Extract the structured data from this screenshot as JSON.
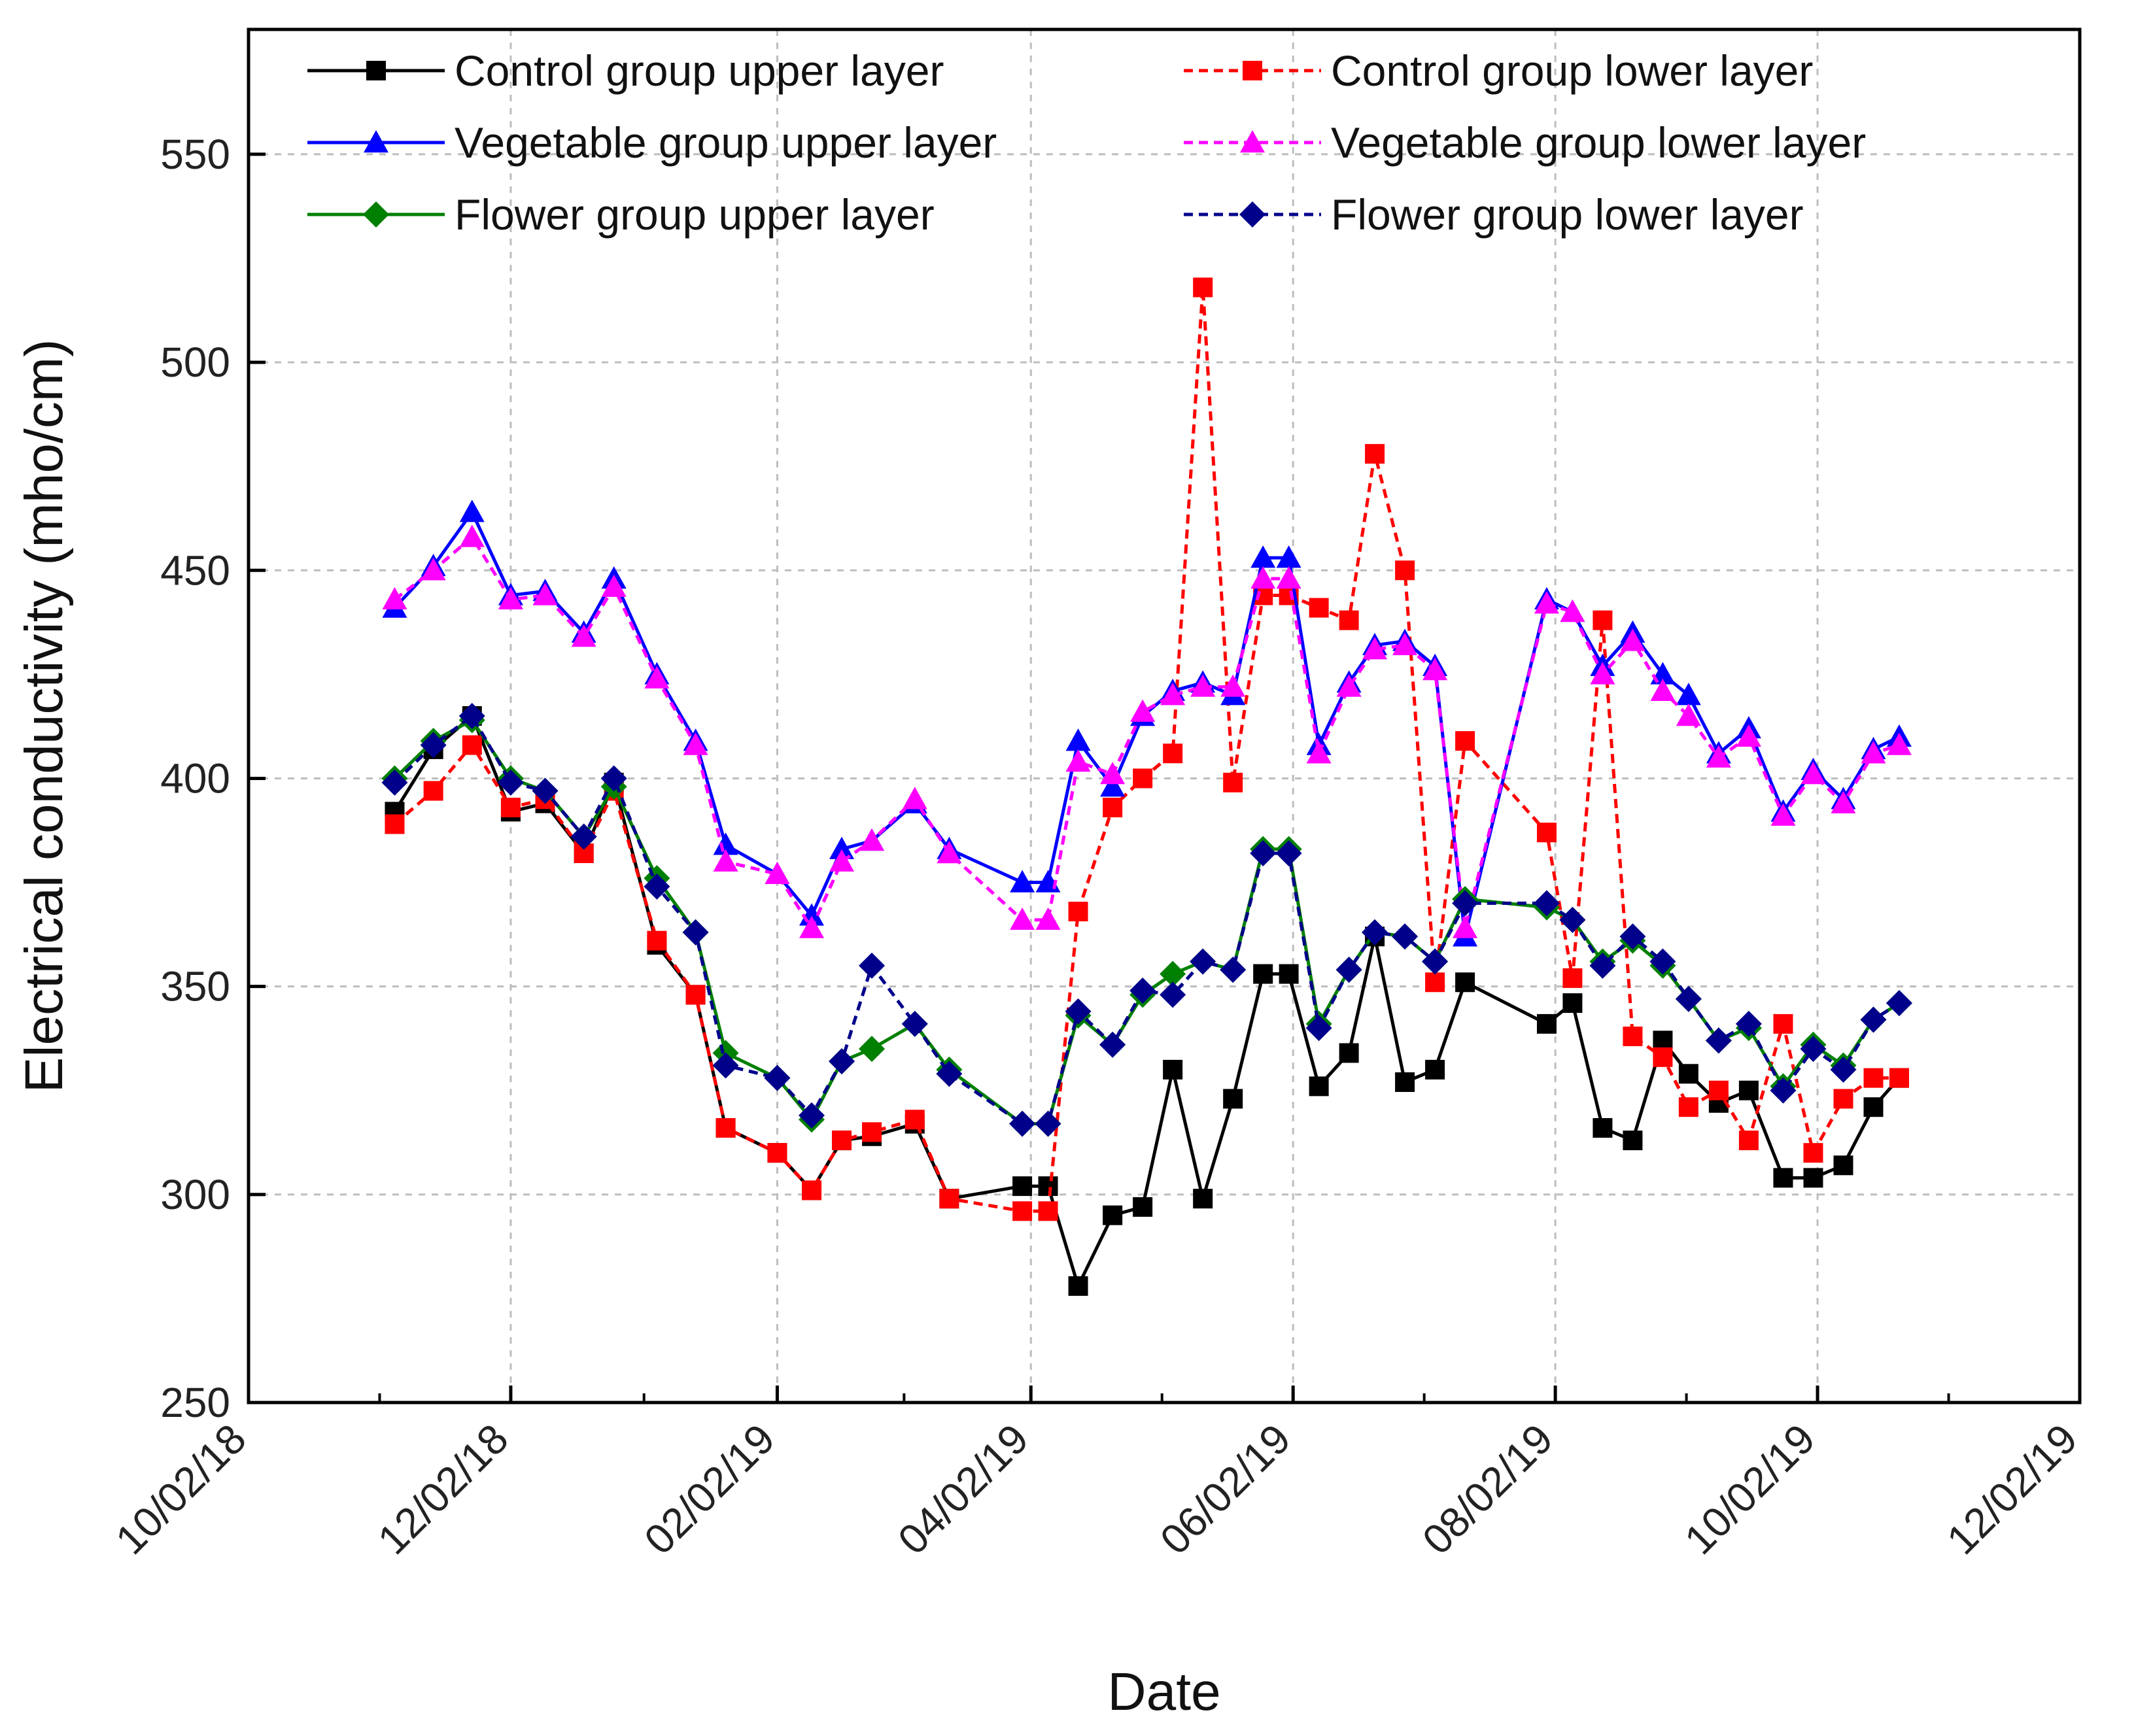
{
  "chart_data": {
    "type": "line",
    "xlabel": "Date",
    "ylabel": "Electrical conductivity (mho/cm)",
    "xlim": [
      "2018-10-02",
      "2019-12-02"
    ],
    "ylim": [
      250,
      580
    ],
    "x_ticks": [
      "10/02/18",
      "12/02/18",
      "02/02/19",
      "04/02/19",
      "06/02/19",
      "08/02/19",
      "10/02/19",
      "12/02/19"
    ],
    "y_ticks": [
      250,
      300,
      350,
      400,
      450,
      500,
      550
    ],
    "grid": true,
    "legend_position": "top",
    "x": [
      "2018-11-05",
      "2018-11-14",
      "2018-11-23",
      "2018-12-02",
      "2018-12-10",
      "2018-12-19",
      "2018-12-26",
      "2019-01-05",
      "2019-01-14",
      "2019-01-21",
      "2019-02-02",
      "2019-02-10",
      "2019-02-17",
      "2019-02-24",
      "2019-03-06",
      "2019-03-14",
      "2019-03-31",
      "2019-04-06",
      "2019-04-13",
      "2019-04-21",
      "2019-04-28",
      "2019-05-05",
      "2019-05-12",
      "2019-05-19",
      "2019-05-26",
      "2019-06-01",
      "2019-06-08",
      "2019-06-15",
      "2019-06-21",
      "2019-06-28",
      "2019-07-05",
      "2019-07-12",
      "2019-07-31",
      "2019-08-06",
      "2019-08-13",
      "2019-08-20",
      "2019-08-27",
      "2019-09-02",
      "2019-09-09",
      "2019-09-16",
      "2019-09-24",
      "2019-10-01",
      "2019-10-08",
      "2019-10-15",
      "2019-10-21"
    ],
    "series": [
      {
        "name": "Control group upper layer",
        "color": "#000000",
        "dash": false,
        "marker": "square",
        "values": [
          392,
          407,
          415,
          392,
          394,
          382,
          399,
          360,
          348,
          316,
          310,
          301,
          313,
          314,
          317,
          299,
          302,
          302,
          278,
          295,
          297,
          330,
          299,
          323,
          353,
          353,
          326,
          334,
          362,
          327,
          330,
          351,
          341,
          346,
          316,
          313,
          337,
          329,
          322,
          325,
          304,
          304,
          307,
          321,
          328
        ]
      },
      {
        "name": "Control group lower layer",
        "color": "#ff0000",
        "dash": true,
        "marker": "square",
        "values": [
          389,
          397,
          408,
          393,
          395,
          382,
          397,
          361,
          348,
          316,
          310,
          301,
          313,
          315,
          318,
          299,
          296,
          296,
          368,
          393,
          400,
          406,
          518,
          399,
          444,
          444,
          441,
          438,
          478,
          450,
          351,
          409,
          387,
          352,
          438,
          338,
          333,
          321,
          325,
          313,
          341,
          310,
          323,
          328,
          328
        ]
      },
      {
        "name": "Vegetable group  upper layer",
        "color": "#0000ff",
        "dash": false,
        "marker": "triangle",
        "values": [
          441,
          451,
          464,
          444,
          445,
          435,
          448,
          425,
          409,
          384,
          377,
          367,
          383,
          385,
          394,
          383,
          375,
          375,
          409,
          398,
          415,
          421,
          423,
          420,
          453,
          453,
          408,
          423,
          432,
          433,
          427,
          362,
          443,
          440,
          427,
          435,
          425,
          420,
          406,
          412,
          392,
          402,
          395,
          407,
          410
        ]
      },
      {
        "name": "Vegetable group lower layer",
        "color": "#ff00ff",
        "dash": true,
        "marker": "triangle",
        "values": [
          443,
          450,
          458,
          443,
          444,
          434,
          446,
          424,
          408,
          380,
          377,
          364,
          380,
          385,
          395,
          382,
          366,
          366,
          404,
          401,
          416,
          420,
          422,
          422,
          448,
          448,
          406,
          422,
          431,
          432,
          426,
          364,
          442,
          440,
          425,
          433,
          421,
          415,
          405,
          410,
          391,
          401,
          394,
          406,
          408
        ]
      },
      {
        "name": "Flower group upper layer",
        "color": "#008000",
        "dash": false,
        "marker": "diamond",
        "values": [
          400,
          409,
          414,
          400,
          397,
          386,
          398,
          376,
          363,
          334,
          328,
          318,
          332,
          335,
          341,
          330,
          317,
          317,
          343,
          336,
          348,
          353,
          356,
          354,
          383,
          383,
          341,
          354,
          363,
          362,
          356,
          371,
          369,
          366,
          356,
          361,
          355,
          347,
          337,
          340,
          326,
          336,
          331,
          342,
          346
        ]
      },
      {
        "name": "Flower group lower layer",
        "color": "#00008b",
        "dash": true,
        "marker": "diamond",
        "values": [
          399,
          408,
          415,
          399,
          397,
          386,
          400,
          374,
          363,
          331,
          328,
          319,
          332,
          355,
          341,
          329,
          317,
          317,
          344,
          336,
          349,
          348,
          356,
          354,
          382,
          382,
          340,
          354,
          363,
          362,
          356,
          370,
          370,
          366,
          355,
          362,
          356,
          347,
          337,
          341,
          325,
          335,
          330,
          342,
          346
        ]
      }
    ]
  }
}
